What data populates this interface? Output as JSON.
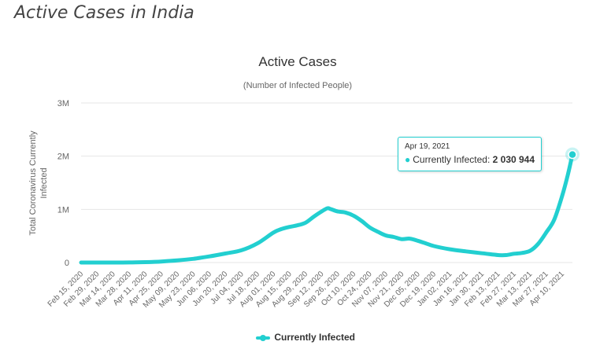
{
  "page": {
    "title": "Active Cases in India"
  },
  "colors": {
    "series": "#22cfd0",
    "grid": "#e6e6e6",
    "axis_text": "#666666",
    "title_text": "#333333"
  },
  "chart_data": {
    "type": "line",
    "title": "Active Cases",
    "subtitle": "(Number of Infected People)",
    "xlabel": "",
    "ylabel": "Total Coronavirus Currently Infected",
    "ylim": [
      0,
      3000000
    ],
    "yticks": [
      0,
      1000000,
      2000000,
      3000000
    ],
    "ytick_labels": [
      "0",
      "1M",
      "2M",
      "3M"
    ],
    "x_start": "2020-02-15",
    "x_end": "2021-04-19",
    "xticks": [
      {
        "date": "2020-02-15",
        "label": "Feb 15, 2020"
      },
      {
        "date": "2020-02-29",
        "label": "Feb 29, 2020"
      },
      {
        "date": "2020-03-14",
        "label": "Mar 14, 2020"
      },
      {
        "date": "2020-03-28",
        "label": "Mar 28, 2020"
      },
      {
        "date": "2020-04-11",
        "label": "Apr 11, 2020"
      },
      {
        "date": "2020-04-25",
        "label": "Apr 25, 2020"
      },
      {
        "date": "2020-05-09",
        "label": "May 09, 2020"
      },
      {
        "date": "2020-05-23",
        "label": "May 23, 2020"
      },
      {
        "date": "2020-06-06",
        "label": "Jun 06, 2020"
      },
      {
        "date": "2020-06-20",
        "label": "Jun 20, 2020"
      },
      {
        "date": "2020-07-04",
        "label": "Jul 04, 2020"
      },
      {
        "date": "2020-07-18",
        "label": "Jul 18, 2020"
      },
      {
        "date": "2020-08-01",
        "label": "Aug 01, 2020"
      },
      {
        "date": "2020-08-15",
        "label": "Aug 15, 2020"
      },
      {
        "date": "2020-08-29",
        "label": "Aug 29, 2020"
      },
      {
        "date": "2020-09-12",
        "label": "Sep 12, 2020"
      },
      {
        "date": "2020-09-26",
        "label": "Sep 26, 2020"
      },
      {
        "date": "2020-10-10",
        "label": "Oct 10, 2020"
      },
      {
        "date": "2020-10-24",
        "label": "Oct 24, 2020"
      },
      {
        "date": "2020-11-07",
        "label": "Nov 07, 2020"
      },
      {
        "date": "2020-11-21",
        "label": "Nov 21, 2020"
      },
      {
        "date": "2020-12-05",
        "label": "Dec 05, 2020"
      },
      {
        "date": "2020-12-19",
        "label": "Dec 19, 2020"
      },
      {
        "date": "2021-01-02",
        "label": "Jan 02, 2021"
      },
      {
        "date": "2021-01-16",
        "label": "Jan 16, 2021"
      },
      {
        "date": "2021-01-30",
        "label": "Jan 30, 2021"
      },
      {
        "date": "2021-02-13",
        "label": "Feb 13, 2021"
      },
      {
        "date": "2021-02-27",
        "label": "Feb 27, 2021"
      },
      {
        "date": "2021-03-13",
        "label": "Mar 13, 2021"
      },
      {
        "date": "2021-03-27",
        "label": "Mar 27, 2021"
      },
      {
        "date": "2021-04-10",
        "label": "Apr 10, 2021"
      }
    ],
    "grid": true,
    "legend": "bottom-center",
    "series": [
      {
        "name": "Currently Infected",
        "points": [
          [
            "2020-02-15",
            0
          ],
          [
            "2020-03-14",
            80
          ],
          [
            "2020-03-28",
            900
          ],
          [
            "2020-04-11",
            7000
          ],
          [
            "2020-04-25",
            19000
          ],
          [
            "2020-05-09",
            40000
          ],
          [
            "2020-05-23",
            70000
          ],
          [
            "2020-06-06",
            115000
          ],
          [
            "2020-06-20",
            170000
          ],
          [
            "2020-07-04",
            230000
          ],
          [
            "2020-07-18",
            360000
          ],
          [
            "2020-08-01",
            565000
          ],
          [
            "2020-08-08",
            630000
          ],
          [
            "2020-08-15",
            670000
          ],
          [
            "2020-08-22",
            700000
          ],
          [
            "2020-08-29",
            750000
          ],
          [
            "2020-09-05",
            860000
          ],
          [
            "2020-09-12",
            960000
          ],
          [
            "2020-09-17",
            1020000
          ],
          [
            "2020-09-20",
            1005000
          ],
          [
            "2020-09-26",
            960000
          ],
          [
            "2020-10-03",
            940000
          ],
          [
            "2020-10-10",
            880000
          ],
          [
            "2020-10-17",
            780000
          ],
          [
            "2020-10-24",
            660000
          ],
          [
            "2020-10-31",
            580000
          ],
          [
            "2020-11-07",
            510000
          ],
          [
            "2020-11-14",
            480000
          ],
          [
            "2020-11-21",
            440000
          ],
          [
            "2020-11-28",
            450000
          ],
          [
            "2020-12-05",
            410000
          ],
          [
            "2020-12-12",
            360000
          ],
          [
            "2020-12-19",
            310000
          ],
          [
            "2021-01-02",
            250000
          ],
          [
            "2021-01-16",
            210000
          ],
          [
            "2021-01-30",
            175000
          ],
          [
            "2021-02-13",
            140000
          ],
          [
            "2021-02-20",
            140000
          ],
          [
            "2021-02-27",
            165000
          ],
          [
            "2021-03-06",
            180000
          ],
          [
            "2021-03-13",
            220000
          ],
          [
            "2021-03-20",
            350000
          ],
          [
            "2021-03-27",
            560000
          ],
          [
            "2021-04-03",
            800000
          ],
          [
            "2021-04-10",
            1250000
          ],
          [
            "2021-04-15",
            1650000
          ],
          [
            "2021-04-19",
            2030944
          ]
        ]
      }
    ],
    "tooltip": {
      "date": "Apr 19, 2021",
      "series": "Currently Infected",
      "value": "2 030 944"
    }
  }
}
